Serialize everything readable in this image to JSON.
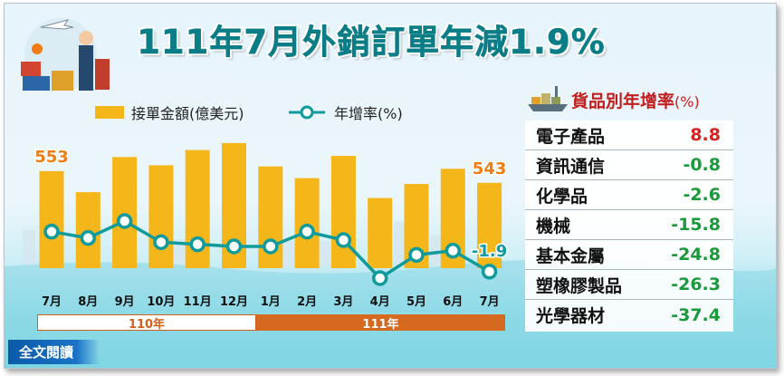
{
  "title": "111年7月外銷訂單年減1.9%",
  "legend": {
    "bar_label": "接單金額(億美元)",
    "line_label": "年增率(%)"
  },
  "years": {
    "y110": "110年",
    "y111": "111年"
  },
  "read_more": "全文閱讀",
  "table": {
    "title": "貨品別年增率",
    "unit": "(%)",
    "rows": [
      {
        "name": "電子產品",
        "value": "8.8"
      },
      {
        "name": "資訊通信",
        "value": "-0.8"
      },
      {
        "name": "化學品",
        "value": "-2.6"
      },
      {
        "name": "機械",
        "value": "-15.8"
      },
      {
        "name": "基本金屬",
        "value": "-24.8"
      },
      {
        "name": "塑橡膠製品",
        "value": "-26.3"
      },
      {
        "name": "光學器材",
        "value": "-37.4"
      }
    ]
  },
  "colors": {
    "bar": "#f5b619",
    "line": "#0f9b9b",
    "positive": "#d92020",
    "negative": "#1a9a3a",
    "label_orange": "#f07d14"
  },
  "chart_data": {
    "type": "bar",
    "categories": [
      "7月",
      "8月",
      "9月",
      "10月",
      "11月",
      "12月",
      "1月",
      "2月",
      "3月",
      "4月",
      "5月",
      "6月",
      "7月"
    ],
    "series": [
      {
        "name": "接單金額(億美元)",
        "type": "bar",
        "values": [
          553,
          535,
          565,
          558,
          571,
          577,
          557,
          547,
          566,
          530,
          542,
          555,
          543
        ]
      },
      {
        "name": "年增率(%)",
        "type": "line",
        "values": [
          17.0,
          14.0,
          22.0,
          12.0,
          11.0,
          10.0,
          10.0,
          17.0,
          13.0,
          -5.0,
          6.0,
          8.0,
          -1.9
        ]
      }
    ],
    "data_labels": [
      {
        "index": 0,
        "series": 0,
        "text": "553"
      },
      {
        "index": 12,
        "series": 0,
        "text": "543"
      },
      {
        "index": 12,
        "series": 1,
        "text": "-1.9"
      }
    ]
  }
}
